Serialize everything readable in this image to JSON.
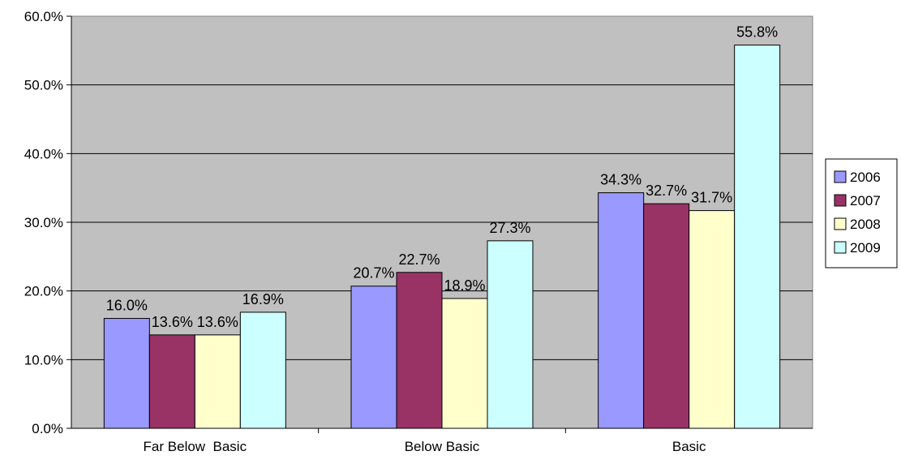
{
  "chart_data": {
    "type": "bar",
    "categories": [
      "Far Below  Basic",
      "Below Basic",
      "Basic"
    ],
    "series": [
      {
        "name": "2006",
        "color": "#9999ff",
        "values": [
          16.0,
          20.7,
          34.3
        ]
      },
      {
        "name": "2007",
        "color": "#993366",
        "values": [
          13.6,
          22.7,
          32.7
        ]
      },
      {
        "name": "2008",
        "color": "#ffffcc",
        "values": [
          13.6,
          18.9,
          31.7
        ]
      },
      {
        "name": "2009",
        "color": "#ccffff",
        "values": [
          16.9,
          27.3,
          55.8
        ]
      }
    ],
    "ylim": [
      0,
      60
    ],
    "yticks": [
      0,
      10,
      20,
      30,
      40,
      50,
      60
    ],
    "ytick_labels": [
      "0.0%",
      "10.0%",
      "20.0%",
      "30.0%",
      "40.0%",
      "50.0%",
      "60.0%"
    ],
    "value_labels": [
      [
        "16.0%",
        "20.7%",
        "34.3%"
      ],
      [
        "13.6%",
        "22.7%",
        "32.7%"
      ],
      [
        "13.6%",
        "18.9%",
        "31.7%"
      ],
      [
        "16.9%",
        "27.3%",
        "55.8%"
      ]
    ],
    "grid": true,
    "plot_background": "#c0c0c0",
    "legend_position": "right",
    "title": "",
    "xlabel": "",
    "ylabel": ""
  }
}
